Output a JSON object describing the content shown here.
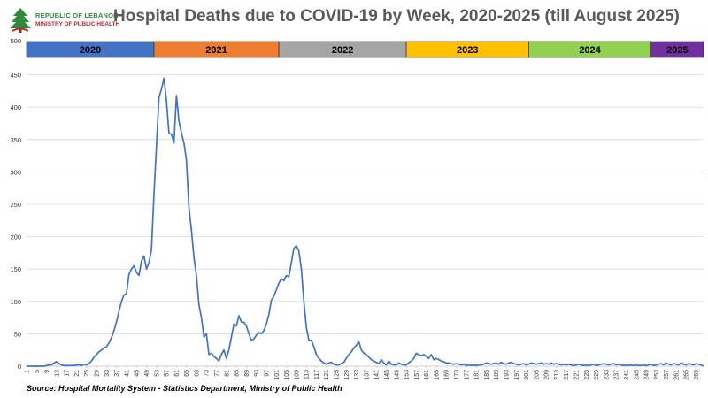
{
  "header": {
    "logo_line1": "REPUBLIC OF LEBANON",
    "logo_line2": "MINISTRY OF PUBLIC HEALTH",
    "title": "Hospital Deaths due to COVID-19 by Week, 2020-2025 (till August 2025)"
  },
  "source": "Source: Hospital Mortality System - Statistics Department, Ministry of Public Health",
  "chart_data": {
    "type": "line",
    "title": "Hospital Deaths due to COVID-19 by Week, 2020-2025 (till August 2025)",
    "xlabel": "",
    "ylabel": "",
    "ylim": [
      0,
      500
    ],
    "xlim": [
      1,
      272
    ],
    "yticks": [
      0,
      50,
      100,
      150,
      200,
      250,
      300,
      350,
      400,
      450,
      500
    ],
    "xticks": [
      1,
      5,
      9,
      13,
      17,
      21,
      25,
      29,
      33,
      37,
      41,
      45,
      49,
      53,
      57,
      61,
      65,
      69,
      73,
      77,
      81,
      85,
      89,
      93,
      97,
      101,
      105,
      109,
      113,
      117,
      121,
      125,
      129,
      133,
      137,
      141,
      145,
      149,
      153,
      157,
      161,
      165,
      169,
      173,
      177,
      181,
      185,
      189,
      193,
      197,
      201,
      205,
      209,
      213,
      217,
      221,
      225,
      229,
      233,
      237,
      241,
      245,
      249,
      253,
      257,
      261,
      265,
      269
    ],
    "grid": true,
    "year_bands": [
      {
        "label": "2020",
        "start": 1,
        "end": 52,
        "color": "#4472C4"
      },
      {
        "label": "2021",
        "start": 52,
        "end": 102,
        "color": "#ED7D31"
      },
      {
        "label": "2022",
        "start": 102,
        "end": 153,
        "color": "#A5A5A5"
      },
      {
        "label": "2023",
        "start": 153,
        "end": 202,
        "color": "#FFC000"
      },
      {
        "label": "2024",
        "start": 202,
        "end": 251,
        "color": "#92D050"
      },
      {
        "label": "2025",
        "start": 251,
        "end": 272,
        "color": "#7030A0"
      }
    ],
    "series": [
      {
        "color": "#4472C4",
        "points": [
          [
            1,
            0
          ],
          [
            8,
            0
          ],
          [
            9,
            1
          ],
          [
            10,
            2
          ],
          [
            11,
            2
          ],
          [
            12,
            5
          ],
          [
            13,
            7
          ],
          [
            14,
            4
          ],
          [
            15,
            2
          ],
          [
            16,
            1
          ],
          [
            17,
            1
          ],
          [
            18,
            1
          ],
          [
            19,
            1
          ],
          [
            20,
            1
          ],
          [
            21,
            2
          ],
          [
            22,
            2
          ],
          [
            23,
            1
          ],
          [
            24,
            3
          ],
          [
            25,
            2
          ],
          [
            26,
            4
          ],
          [
            27,
            8
          ],
          [
            28,
            14
          ],
          [
            29,
            18
          ],
          [
            30,
            22
          ],
          [
            31,
            25
          ],
          [
            32,
            28
          ],
          [
            33,
            30
          ],
          [
            34,
            36
          ],
          [
            35,
            44
          ],
          [
            36,
            55
          ],
          [
            37,
            68
          ],
          [
            38,
            85
          ],
          [
            39,
            100
          ],
          [
            40,
            110
          ],
          [
            41,
            112
          ],
          [
            42,
            142
          ],
          [
            43,
            150
          ],
          [
            44,
            155
          ],
          [
            45,
            145
          ],
          [
            46,
            140
          ],
          [
            47,
            162
          ],
          [
            48,
            170
          ],
          [
            49,
            150
          ],
          [
            50,
            160
          ],
          [
            51,
            180
          ],
          [
            52,
            265
          ],
          [
            53,
            340
          ],
          [
            54,
            415
          ],
          [
            55,
            428
          ],
          [
            56,
            445
          ],
          [
            57,
            410
          ],
          [
            58,
            360
          ],
          [
            59,
            358
          ],
          [
            60,
            345
          ],
          [
            61,
            418
          ],
          [
            62,
            378
          ],
          [
            63,
            360
          ],
          [
            64,
            345
          ],
          [
            65,
            318
          ],
          [
            66,
            245
          ],
          [
            67,
            210
          ],
          [
            68,
            168
          ],
          [
            69,
            140
          ],
          [
            70,
            95
          ],
          [
            71,
            75
          ],
          [
            72,
            45
          ],
          [
            73,
            50
          ],
          [
            74,
            18
          ],
          [
            75,
            20
          ],
          [
            76,
            15
          ],
          [
            77,
            12
          ],
          [
            78,
            8
          ],
          [
            79,
            18
          ],
          [
            80,
            25
          ],
          [
            81,
            12
          ],
          [
            82,
            25
          ],
          [
            83,
            45
          ],
          [
            84,
            65
          ],
          [
            85,
            62
          ],
          [
            86,
            78
          ],
          [
            87,
            68
          ],
          [
            88,
            68
          ],
          [
            89,
            62
          ],
          [
            90,
            50
          ],
          [
            91,
            40
          ],
          [
            92,
            42
          ],
          [
            93,
            48
          ],
          [
            94,
            52
          ],
          [
            95,
            50
          ],
          [
            96,
            55
          ],
          [
            97,
            65
          ],
          [
            98,
            80
          ],
          [
            99,
            102
          ],
          [
            100,
            108
          ],
          [
            101,
            118
          ],
          [
            102,
            128
          ],
          [
            103,
            135
          ],
          [
            104,
            132
          ],
          [
            105,
            140
          ],
          [
            106,
            138
          ],
          [
            107,
            160
          ],
          [
            108,
            182
          ],
          [
            109,
            186
          ],
          [
            110,
            178
          ],
          [
            111,
            150
          ],
          [
            112,
            100
          ],
          [
            113,
            60
          ],
          [
            114,
            40
          ],
          [
            115,
            40
          ],
          [
            116,
            30
          ],
          [
            117,
            18
          ],
          [
            118,
            12
          ],
          [
            119,
            8
          ],
          [
            120,
            5
          ],
          [
            121,
            3
          ],
          [
            122,
            5
          ],
          [
            123,
            6
          ],
          [
            124,
            3
          ],
          [
            125,
            2
          ],
          [
            126,
            2
          ],
          [
            127,
            4
          ],
          [
            128,
            6
          ],
          [
            129,
            12
          ],
          [
            130,
            18
          ],
          [
            131,
            22
          ],
          [
            132,
            28
          ],
          [
            133,
            32
          ],
          [
            134,
            38
          ],
          [
            135,
            25
          ],
          [
            136,
            20
          ],
          [
            137,
            18
          ],
          [
            138,
            14
          ],
          [
            139,
            10
          ],
          [
            140,
            8
          ],
          [
            141,
            6
          ],
          [
            142,
            4
          ],
          [
            143,
            10
          ],
          [
            144,
            5
          ],
          [
            145,
            2
          ],
          [
            146,
            8
          ],
          [
            147,
            3
          ],
          [
            148,
            2
          ],
          [
            149,
            2
          ],
          [
            150,
            5
          ],
          [
            151,
            3
          ],
          [
            152,
            2
          ],
          [
            153,
            2
          ],
          [
            154,
            5
          ],
          [
            155,
            8
          ],
          [
            156,
            12
          ],
          [
            157,
            20
          ],
          [
            158,
            18
          ],
          [
            159,
            16
          ],
          [
            160,
            18
          ],
          [
            161,
            15
          ],
          [
            162,
            12
          ],
          [
            163,
            18
          ],
          [
            164,
            10
          ],
          [
            165,
            12
          ],
          [
            166,
            10
          ],
          [
            167,
            8
          ],
          [
            168,
            7
          ],
          [
            169,
            5
          ],
          [
            170,
            5
          ],
          [
            171,
            4
          ],
          [
            172,
            3
          ],
          [
            173,
            4
          ],
          [
            174,
            3
          ],
          [
            175,
            2
          ],
          [
            176,
            3
          ],
          [
            177,
            1
          ],
          [
            178,
            2
          ],
          [
            179,
            1
          ],
          [
            180,
            2
          ],
          [
            181,
            1
          ],
          [
            182,
            2
          ],
          [
            183,
            2
          ],
          [
            184,
            3
          ],
          [
            185,
            5
          ],
          [
            186,
            4
          ],
          [
            187,
            3
          ],
          [
            188,
            4
          ],
          [
            189,
            5
          ],
          [
            190,
            3
          ],
          [
            191,
            6
          ],
          [
            192,
            4
          ],
          [
            193,
            3
          ],
          [
            194,
            5
          ],
          [
            195,
            6
          ],
          [
            196,
            4
          ],
          [
            197,
            3
          ],
          [
            198,
            2
          ],
          [
            199,
            3
          ],
          [
            200,
            4
          ],
          [
            201,
            2
          ],
          [
            202,
            3
          ],
          [
            203,
            5
          ],
          [
            204,
            4
          ],
          [
            205,
            3
          ],
          [
            206,
            4
          ],
          [
            207,
            5
          ],
          [
            208,
            3
          ],
          [
            209,
            4
          ],
          [
            210,
            3
          ],
          [
            211,
            5
          ],
          [
            212,
            3
          ],
          [
            213,
            4
          ],
          [
            214,
            3
          ],
          [
            215,
            2
          ],
          [
            216,
            3
          ],
          [
            217,
            2
          ],
          [
            218,
            3
          ],
          [
            219,
            2
          ],
          [
            220,
            1
          ],
          [
            221,
            2
          ],
          [
            222,
            3
          ],
          [
            223,
            2
          ],
          [
            224,
            1
          ],
          [
            225,
            2
          ],
          [
            226,
            1
          ],
          [
            227,
            2
          ],
          [
            228,
            3
          ],
          [
            229,
            1
          ],
          [
            230,
            2
          ],
          [
            231,
            3
          ],
          [
            232,
            4
          ],
          [
            233,
            3
          ],
          [
            234,
            2
          ],
          [
            235,
            3
          ],
          [
            236,
            4
          ],
          [
            237,
            2
          ],
          [
            238,
            3
          ],
          [
            239,
            2
          ],
          [
            240,
            1
          ],
          [
            241,
            2
          ],
          [
            242,
            1
          ],
          [
            243,
            2
          ],
          [
            244,
            1
          ],
          [
            245,
            2
          ],
          [
            246,
            1
          ],
          [
            247,
            1
          ],
          [
            248,
            2
          ],
          [
            249,
            1
          ],
          [
            250,
            2
          ],
          [
            251,
            3
          ],
          [
            252,
            1
          ],
          [
            253,
            2
          ],
          [
            254,
            3
          ],
          [
            255,
            4
          ],
          [
            256,
            2
          ],
          [
            257,
            5
          ],
          [
            258,
            3
          ],
          [
            259,
            2
          ],
          [
            260,
            4
          ],
          [
            261,
            3
          ],
          [
            262,
            2
          ],
          [
            263,
            5
          ],
          [
            264,
            3
          ],
          [
            265,
            2
          ],
          [
            266,
            4
          ],
          [
            267,
            3
          ],
          [
            268,
            2
          ],
          [
            269,
            4
          ],
          [
            270,
            3
          ],
          [
            271,
            2
          ],
          [
            272,
            0
          ]
        ]
      }
    ]
  }
}
